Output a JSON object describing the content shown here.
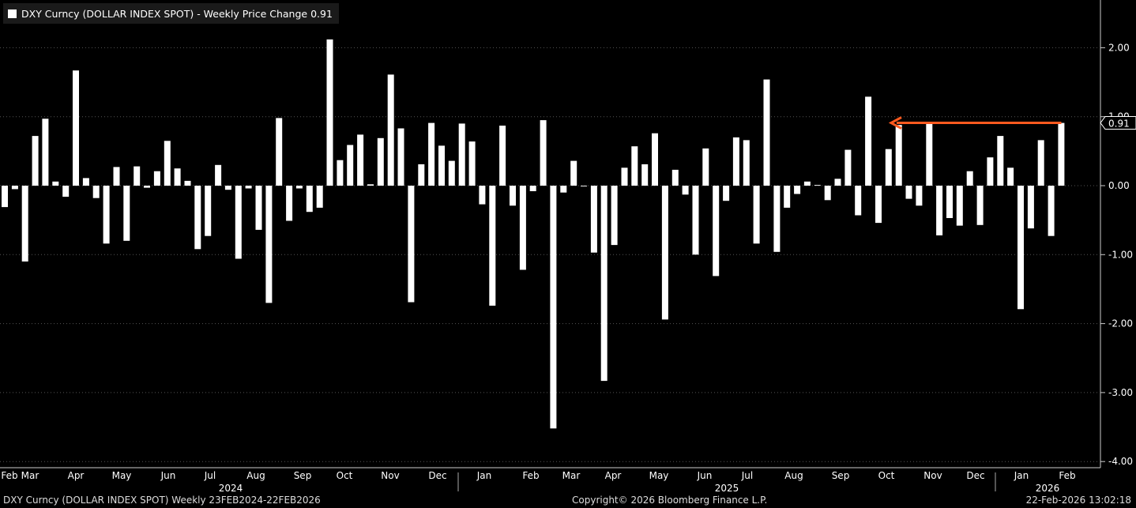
{
  "legend": {
    "label": "DXY Curncy (DOLLAR INDEX SPOT) - Weekly Price Change 0.91",
    "swatch_color": "#ffffff"
  },
  "footer": {
    "left": "DXY Curncy (DOLLAR INDEX SPOT) Weekly 23FEB2024-22FEB2026",
    "center": "Copyright© 2026 Bloomberg Finance L.P.",
    "right": "22-Feb-2026 13:02:18"
  },
  "chart_data": {
    "type": "bar",
    "title": "DXY Curncy (DOLLAR INDEX SPOT) - Weekly Price Change 0.91",
    "ylim": [
      -4.0,
      2.4
    ],
    "yticks": [
      "2.00",
      "1.00",
      "0.00",
      "-1.00",
      "-2.00",
      "-3.00",
      "-4.00"
    ],
    "ytick_values": [
      2,
      1,
      0,
      -1,
      -2,
      -3,
      -4
    ],
    "month_labels": [
      "Feb",
      "Mar",
      "Apr",
      "May",
      "Jun",
      "Jul",
      "Aug",
      "Sep",
      "Oct",
      "Nov",
      "Dec",
      "Jan",
      "Feb",
      "Mar",
      "Apr",
      "May",
      "Jun",
      "Jul",
      "Aug",
      "Sep",
      "Oct",
      "Nov",
      "Dec",
      "Jan",
      "Feb"
    ],
    "year_labels": [
      "2024",
      "2025",
      "2026"
    ],
    "grid": true,
    "bar_color": "#ffffff",
    "last_value_label": "0.91",
    "annotation_arrow_color": "#ff5a1f",
    "values": [
      -0.31,
      -0.05,
      -1.1,
      0.72,
      0.97,
      0.06,
      -0.16,
      1.67,
      0.11,
      -0.18,
      -0.84,
      0.27,
      -0.8,
      0.28,
      -0.03,
      0.21,
      0.65,
      0.25,
      0.07,
      -0.92,
      -0.73,
      0.3,
      -0.06,
      -1.06,
      -0.04,
      -0.64,
      -1.7,
      0.98,
      -0.51,
      -0.04,
      -0.38,
      -0.32,
      2.12,
      0.37,
      0.59,
      0.74,
      0.02,
      0.69,
      1.61,
      0.83,
      -1.69,
      0.31,
      0.91,
      0.58,
      0.36,
      0.9,
      0.64,
      -0.27,
      -1.74,
      0.87,
      -0.29,
      -1.22,
      -0.08,
      0.95,
      -3.52,
      -0.1,
      0.36,
      -0.01,
      -0.97,
      -2.83,
      -0.86,
      0.26,
      0.57,
      0.31,
      0.76,
      -1.94,
      0.23,
      -0.13,
      -1.0,
      0.54,
      -1.31,
      -0.22,
      0.7,
      0.66,
      -0.84,
      1.54,
      -0.96,
      -0.32,
      -0.12,
      0.06,
      0.01,
      -0.21,
      0.1,
      0.52,
      -0.43,
      1.29,
      -0.54,
      0.53,
      0.88,
      -0.19,
      -0.29,
      0.9,
      -0.72,
      -0.47,
      -0.58,
      0.21,
      -0.57,
      0.41,
      0.72,
      0.26,
      -1.79,
      -0.62,
      0.66,
      -0.73,
      0.91
    ]
  }
}
